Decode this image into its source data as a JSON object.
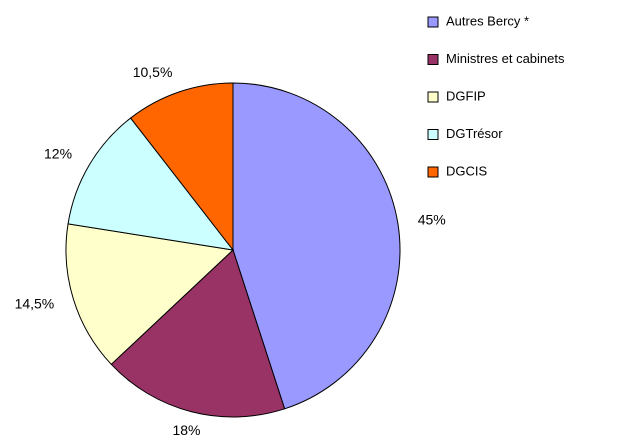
{
  "chart_data": {
    "type": "pie",
    "categories": [
      "Autres Bercy *",
      "Ministres et cabinets",
      "DGFIP",
      "DGTrésor",
      "DGCIS"
    ],
    "values": [
      45,
      18,
      14.5,
      12,
      10.5
    ],
    "value_labels": [
      "45%",
      "18%",
      "14,5%",
      "12%",
      "10,5%"
    ],
    "colors": [
      "#9999ff",
      "#993366",
      "#ffffcc",
      "#ccffff",
      "#ff6600"
    ],
    "legend": "right"
  }
}
